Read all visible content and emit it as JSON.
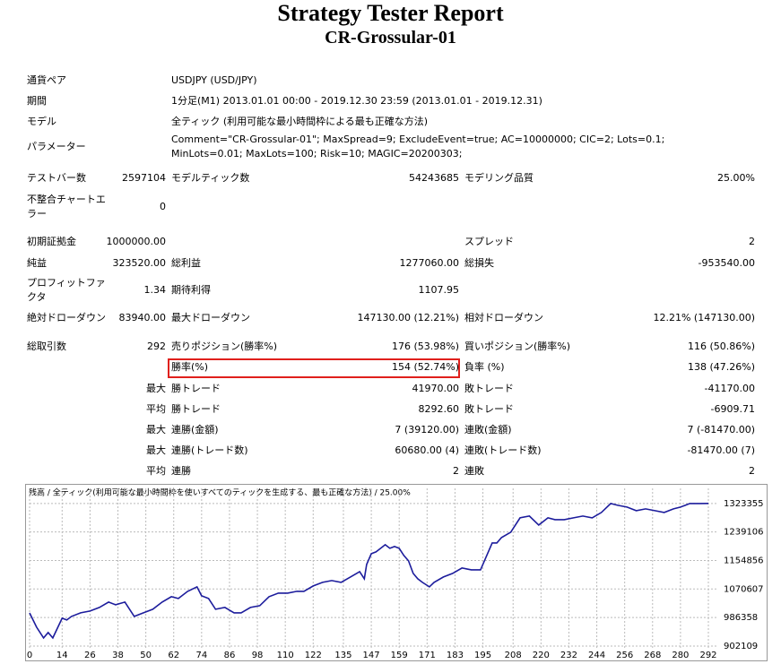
{
  "header": {
    "title": "Strategy Tester Report",
    "subtitle": "CR-Grossular-01"
  },
  "settings": [
    {
      "label": "通貨ペア",
      "value": "USDJPY (USD/JPY)"
    },
    {
      "label": "期間",
      "value": "1分足(M1) 2013.01.01 00:00 - 2019.12.30 23:59 (2013.01.01 - 2019.12.31)"
    },
    {
      "label": "モデル",
      "value": "全ティック (利用可能な最小時間枠による最も正確な方法)"
    },
    {
      "label": "パラメーター",
      "value": "Comment=\"CR-Grossular-01\"; MaxSpread=9; ExcludeEvent=true; AC=10000000; CIC=2; Lots=0.1; MinLots=0.01; MaxLots=100; Risk=10; MAGIC=20200303;"
    }
  ],
  "stats": [
    [
      "テストバー数",
      "2597104",
      "モデルティック数",
      "54243685",
      "モデリング品質",
      "25.00%"
    ],
    [
      "不整合チャートエラー",
      "0",
      null,
      null,
      null,
      null
    ],
    [
      "初期証拠金",
      "1000000.00",
      null,
      null,
      "スプレッド",
      "2"
    ],
    [
      "純益",
      "323520.00",
      "総利益",
      "1277060.00",
      "総損失",
      "-953540.00"
    ],
    [
      "プロフィットファクタ",
      "1.34",
      "期待利得",
      "1107.95",
      null,
      null
    ],
    [
      "絶対ドローダウン",
      "83940.00",
      "最大ドローダウン",
      "147130.00 (12.21%)",
      "相対ドローダウン",
      "12.21% (147130.00)"
    ],
    [
      "総取引数",
      "292",
      "売りポジション(勝率%)",
      "176 (53.98%)",
      "買いポジション(勝率%)",
      "116 (50.86%)"
    ],
    [
      null,
      null,
      "勝率(%)",
      "154 (52.74%)",
      "負率 (%)",
      "138 (47.26%)"
    ],
    [
      null,
      "最大",
      "勝トレード",
      "41970.00",
      "敗トレード",
      "-41170.00"
    ],
    [
      null,
      "平均",
      "勝トレード",
      "8292.60",
      "敗トレード",
      "-6909.71"
    ],
    [
      null,
      "最大",
      "連勝(金額)",
      "7 (39120.00)",
      "連敗(金額)",
      "7 (-81470.00)"
    ],
    [
      null,
      "最大",
      "連勝(トレード数)",
      "60680.00 (4)",
      "連敗(トレード数)",
      "-81470.00 (7)"
    ],
    [
      null,
      "平均",
      "連勝",
      "2",
      "連敗",
      "2"
    ]
  ],
  "chart_data": {
    "type": "line",
    "title": "残高 / 全ティック(利用可能な最小時間枠を使いすべてのティックを生成する、最も正確な方法) / 25.00%",
    "color": "#1c1c9c",
    "x": [
      0,
      3,
      6,
      8,
      10,
      14,
      16,
      18,
      22,
      26,
      30,
      34,
      37,
      41,
      45,
      49,
      53,
      57,
      61,
      64,
      68,
      72,
      74,
      77,
      80,
      84,
      88,
      91,
      95,
      99,
      103,
      107,
      111,
      115,
      118,
      122,
      126,
      130,
      134,
      138,
      142,
      144,
      145,
      147,
      149,
      151,
      153,
      155,
      157,
      159,
      161,
      163,
      165,
      167,
      169,
      172,
      174,
      178,
      182,
      186,
      190,
      194,
      196,
      198,
      199,
      201,
      203,
      207,
      211,
      215,
      219,
      223,
      226,
      230,
      234,
      238,
      242,
      246,
      250,
      253,
      257,
      261,
      265,
      269,
      273,
      277,
      280,
      284,
      288,
      292
    ],
    "values": [
      1000000,
      957700,
      926000,
      941800,
      926000,
      984200,
      978900,
      989500,
      1000100,
      1005400,
      1016000,
      1031900,
      1024000,
      1031900,
      989500,
      1000100,
      1010700,
      1031900,
      1047800,
      1042500,
      1063700,
      1076900,
      1050500,
      1042500,
      1010700,
      1016000,
      1000100,
      1000100,
      1016000,
      1021300,
      1047800,
      1058400,
      1058400,
      1063700,
      1063700,
      1079600,
      1090200,
      1095500,
      1090200,
      1106100,
      1122000,
      1100800,
      1143200,
      1175000,
      1180300,
      1190900,
      1201400,
      1190900,
      1196100,
      1190900,
      1169700,
      1153800,
      1116700,
      1100800,
      1090200,
      1076900,
      1090200,
      1106100,
      1116700,
      1132600,
      1127300,
      1127300,
      1159100,
      1190900,
      1206700,
      1206700,
      1222600,
      1238500,
      1280900,
      1286200,
      1259700,
      1280900,
      1275600,
      1275600,
      1280900,
      1286200,
      1280900,
      1296800,
      1323300,
      1318000,
      1312700,
      1302100,
      1307400,
      1302100,
      1296800,
      1307400,
      1312700,
      1323300,
      1323300,
      1323520
    ],
    "xlim": [
      0,
      292
    ],
    "xticks": [
      0,
      14,
      26,
      38,
      50,
      62,
      74,
      86,
      98,
      110,
      122,
      135,
      147,
      159,
      171,
      183,
      195,
      208,
      220,
      232,
      244,
      256,
      268,
      280,
      292
    ],
    "ylim": [
      894000,
      1368000
    ],
    "yticks": [
      902109,
      986358,
      1070607,
      1154856,
      1239106,
      1323355
    ],
    "grid": true
  }
}
